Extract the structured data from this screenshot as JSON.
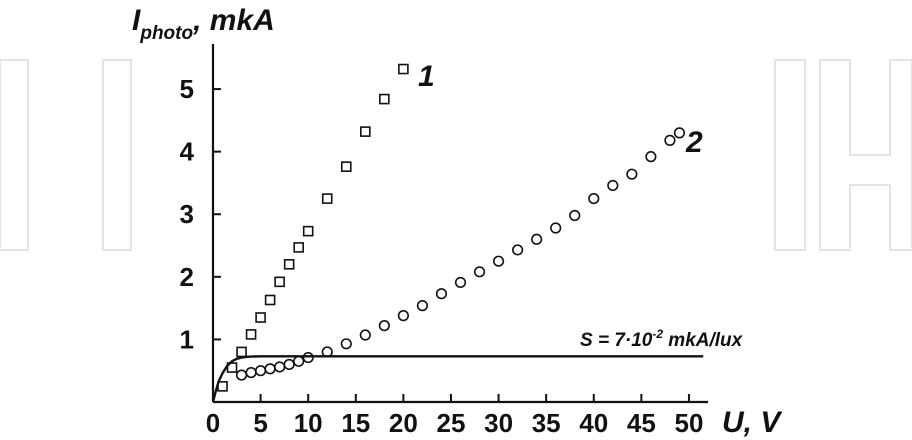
{
  "chart_data": {
    "type": "scatter",
    "title": "",
    "ylabel_main": "I",
    "ylabel_sub": "photo",
    "ylabel_tail": ", mkA",
    "xlabel": "U, V",
    "xlim": [
      0,
      52
    ],
    "ylim": [
      0,
      5.8
    ],
    "x_ticks": [
      0,
      5,
      10,
      15,
      20,
      25,
      30,
      35,
      40,
      45,
      50
    ],
    "y_ticks": [
      1,
      2,
      3,
      4,
      5
    ],
    "grid": false,
    "series": [
      {
        "name": "1",
        "marker": "square",
        "x": [
          1,
          2,
          3,
          4,
          5,
          6,
          7,
          8,
          9,
          10,
          12,
          14,
          16,
          18,
          20
        ],
        "y": [
          0.25,
          0.55,
          0.8,
          1.08,
          1.35,
          1.63,
          1.92,
          2.2,
          2.47,
          2.73,
          3.25,
          3.76,
          4.32,
          4.84,
          5.32
        ]
      },
      {
        "name": "2",
        "marker": "circle",
        "x": [
          3,
          4,
          5,
          6,
          7,
          8,
          9,
          10,
          12,
          14,
          16,
          18,
          20,
          22,
          24,
          26,
          28,
          30,
          32,
          34,
          36,
          38,
          40,
          42,
          44,
          46,
          48,
          49
        ],
        "y": [
          0.43,
          0.47,
          0.5,
          0.53,
          0.56,
          0.6,
          0.65,
          0.71,
          0.8,
          0.93,
          1.07,
          1.22,
          1.38,
          1.54,
          1.73,
          1.91,
          2.08,
          2.25,
          2.43,
          2.6,
          2.78,
          2.98,
          3.25,
          3.46,
          3.64,
          3.92,
          4.18,
          4.3
        ]
      },
      {
        "name": "S = 7·10⁻² mkA/lux",
        "marker": "line",
        "x": [
          0,
          0.3,
          0.6,
          1,
          1.5,
          2,
          2.5,
          3,
          3.5,
          4,
          5,
          6,
          8,
          10,
          20,
          30,
          40,
          50,
          51.5
        ],
        "y": [
          0,
          0.18,
          0.33,
          0.46,
          0.58,
          0.65,
          0.69,
          0.71,
          0.72,
          0.725,
          0.73,
          0.73,
          0.73,
          0.73,
          0.73,
          0.73,
          0.73,
          0.73,
          0.73
        ]
      }
    ],
    "annotations": {
      "label_1": "1",
      "label_2": "2",
      "formula_prefix": "S = 7·10",
      "formula_exp": "-2",
      "formula_suffix": " mkA/lux"
    },
    "colors": {
      "ink": "#111111",
      "watermark": "#e4e4e4"
    }
  }
}
